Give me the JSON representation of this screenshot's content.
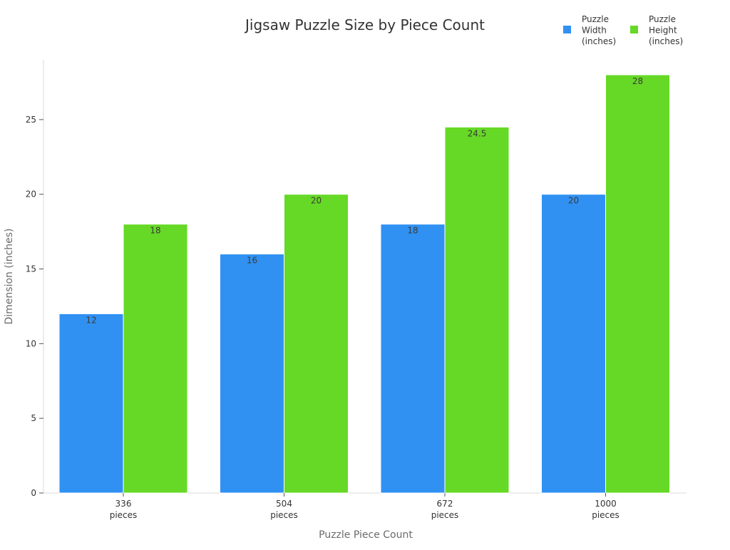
{
  "chart_data": {
    "type": "bar",
    "title": "Jigsaw Puzzle Size by Piece Count",
    "xlabel": "Puzzle Piece Count",
    "ylabel": "Dimension (inches)",
    "categories": [
      [
        "336",
        "pieces"
      ],
      [
        "504",
        "pieces"
      ],
      [
        "672",
        "pieces"
      ],
      [
        "1000",
        "pieces"
      ]
    ],
    "series": [
      {
        "name": [
          "Puzzle",
          "Width",
          "(inches)"
        ],
        "values": [
          12,
          16,
          18,
          20
        ],
        "color": "#3091f2"
      },
      {
        "name": [
          "Puzzle",
          "Height",
          "(inches)"
        ],
        "values": [
          18,
          20,
          24.5,
          28
        ],
        "color": "#66d926"
      }
    ],
    "ylim": [
      0,
      29
    ],
    "yticks": [
      0,
      5,
      10,
      15,
      20,
      25
    ],
    "grid": false,
    "legend": "top-right"
  }
}
